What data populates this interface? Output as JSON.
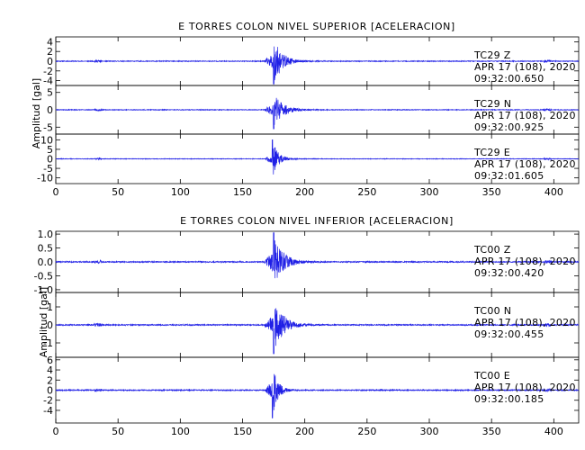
{
  "chart_data": [
    {
      "type": "line",
      "title": "E TORRES COLON NIVEL SUPERIOR [ACELERACION]",
      "ylabel": "Amplitud [gal]",
      "xlim": [
        0,
        420
      ],
      "xticks": [
        "0",
        "50",
        "100",
        "150",
        "200",
        "250",
        "300",
        "350",
        "400"
      ],
      "series": [
        {
          "name": "TC29 Z",
          "station": "TC29",
          "component": "Z",
          "date": "APR 17 (108), 2020",
          "time": "09:32:00.650",
          "ylim": [
            -5,
            5
          ],
          "yticks": [
            "4",
            "2",
            "0",
            "-2",
            "-4"
          ],
          "onset": 167,
          "peak_time": 175,
          "peak": 4.7,
          "decay": 6.5,
          "noise": 0.08,
          "sign": -1,
          "seed": 11
        },
        {
          "name": "TC29 N",
          "station": "TC29",
          "component": "N",
          "date": "APR 17 (108), 2020",
          "time": "09:32:00.925",
          "ylim": [
            -7,
            7
          ],
          "yticks": [
            "5",
            "0",
            "-5"
          ],
          "onset": 167,
          "peak_time": 175,
          "peak": 5.5,
          "decay": 7,
          "noise": 0.1,
          "sign": -1,
          "seed": 23
        },
        {
          "name": "TC29 E",
          "station": "TC29",
          "component": "E",
          "date": "APR 17 (108), 2020",
          "time": "09:32:01.605",
          "ylim": [
            -13,
            13
          ],
          "yticks": [
            "10",
            "5",
            "0",
            "-5",
            "-10"
          ],
          "onset": 168,
          "peak_time": 174,
          "peak": 10,
          "decay": 4.5,
          "noise": 0.15,
          "sign": 1,
          "seed": 37
        }
      ]
    },
    {
      "type": "line",
      "title": "E TORRES COLON NIVEL INFERIOR [ACELERACION]",
      "ylabel": "Amplitud [gal]",
      "xlim": [
        0,
        420
      ],
      "xticks": [
        "0",
        "50",
        "100",
        "150",
        "200",
        "250",
        "300",
        "350",
        "400"
      ],
      "series": [
        {
          "name": "TC00 Z",
          "station": "TC00",
          "component": "Z",
          "date": "APR 17 (108), 2020",
          "time": "09:32:00.420",
          "ylim": [
            -1.1,
            1.1
          ],
          "yticks": [
            "1.0",
            "0.5",
            "0.0",
            "-0.5",
            "-1.0"
          ],
          "onset": 167,
          "peak_time": 175,
          "peak": 1.05,
          "decay": 7,
          "noise": 0.02,
          "sign": 1,
          "seed": 41
        },
        {
          "name": "TC00 N",
          "station": "TC00",
          "component": "N",
          "date": "APR 17 (108), 2020",
          "time": "09:32:00.455",
          "ylim": [
            -1.8,
            1.8
          ],
          "yticks": [
            "1",
            "0",
            "-1"
          ],
          "onset": 167,
          "peak_time": 175,
          "peak": 1.6,
          "decay": 7,
          "noise": 0.03,
          "sign": -1,
          "seed": 53
        },
        {
          "name": "TC00 E",
          "station": "TC00",
          "component": "E",
          "date": "APR 17 (108), 2020",
          "time": "09:32:00.185",
          "ylim": [
            -6.5,
            6.5
          ],
          "yticks": [
            "6",
            "4",
            "2",
            "0",
            "-2",
            "-4"
          ],
          "onset": 168,
          "peak_time": 174,
          "peak": 5.5,
          "decay": 4,
          "noise": 0.1,
          "sign": -1,
          "seed": 67
        }
      ]
    }
  ]
}
